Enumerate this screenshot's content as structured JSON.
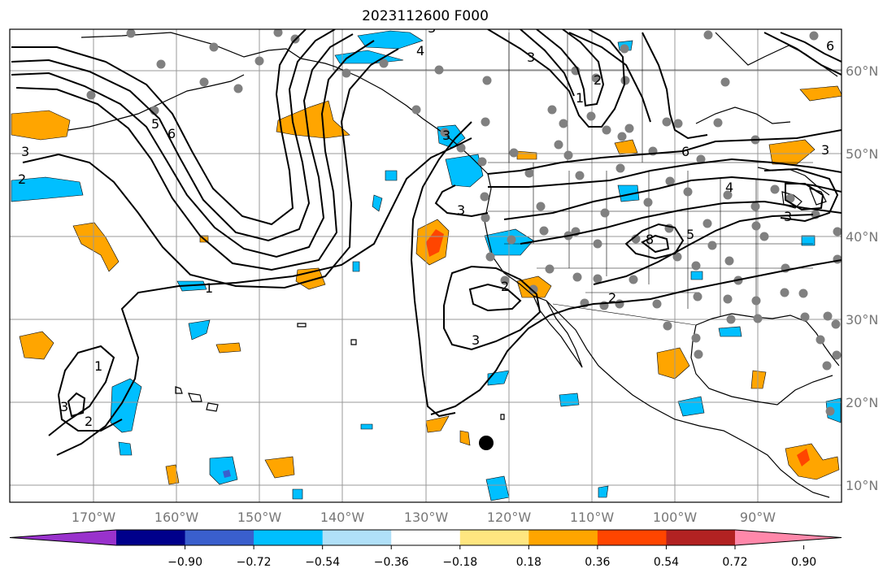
{
  "title": "2023112600 F000",
  "map": {
    "lon_ticks": [
      "170°W",
      "160°W",
      "150°W",
      "140°W",
      "130°W",
      "120°W",
      "110°W",
      "100°W",
      "90°W"
    ],
    "lat_ticks": [
      "60°N",
      "50°N",
      "40°N",
      "30°N",
      "20°N",
      "10°N"
    ],
    "contour_labels": [
      "5",
      "6",
      "3",
      "2",
      "4",
      "3",
      "1",
      "2",
      "2",
      "3",
      "3",
      "6",
      "4",
      "3",
      "8",
      "5",
      "2",
      "1",
      "3",
      "1",
      "3",
      "2",
      "6",
      "3",
      "3"
    ],
    "grid_color": "#999999",
    "coast_color": "#000000"
  },
  "colorbar": {
    "colors": [
      "#9932cc",
      "#00008b",
      "#3a5fcd",
      "#00bfff",
      "#b0e0f8",
      "#ffffff",
      "#ffe680",
      "#ffa500",
      "#ff4500",
      "#b22222",
      "#ff88aa"
    ],
    "labels": [
      "−0.90",
      "−0.72",
      "−0.54",
      "−0.36",
      "−0.18",
      "0.18",
      "0.36",
      "0.54",
      "0.72",
      "0.90"
    ]
  },
  "colors": {
    "positive_fill": "#ffa500",
    "positive_strong": "#ff4500",
    "negative_fill": "#00bfff",
    "station_dot": "#808080",
    "marker": "#000000"
  }
}
